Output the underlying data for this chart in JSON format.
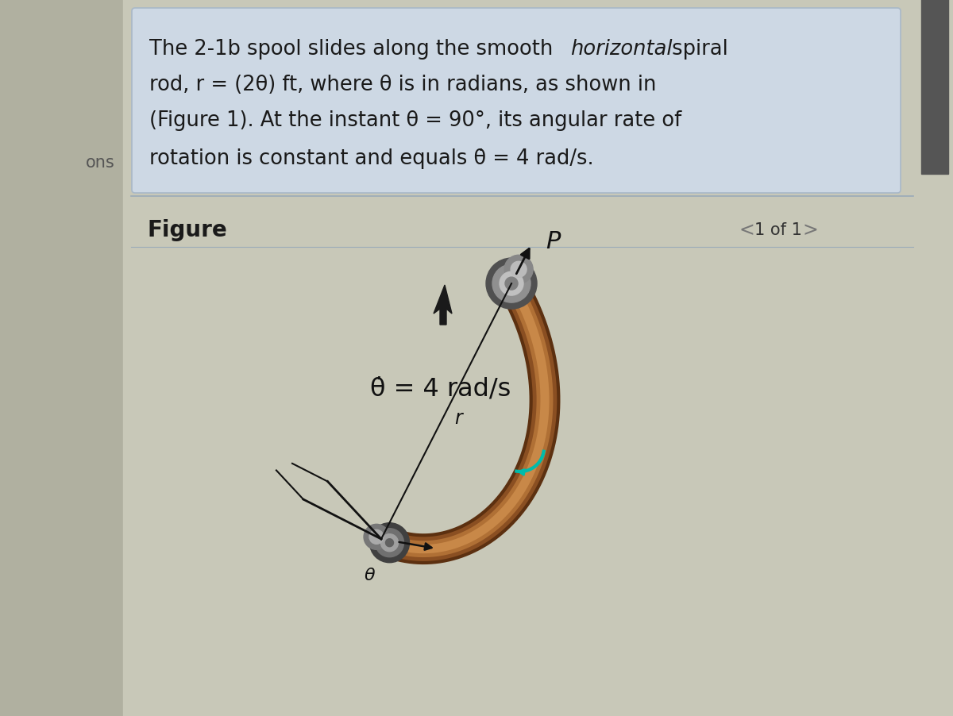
{
  "bg_color": "#c4c4b4",
  "content_bg": "#c8c8b8",
  "text_box_color": "#cdd8e4",
  "text_box_edge": "#a8b8c8",
  "figure_label": "Figure",
  "page_label": "1 of 1",
  "theta_dot_label": "θ̇ = 4 rad/s",
  "theta_label": "θ",
  "r_label": "r",
  "P_label": "P",
  "left_strip_color": "#b0b0a0",
  "scrollbar_color": "#555555",
  "scrollbar_track": "#c8c8b8",
  "rod_dark": "#7a4a20",
  "rod_mid": "#a06030",
  "rod_light": "#c88848",
  "spool_dark": "#606060",
  "spool_mid": "#909090",
  "spool_light": "#b8b8b8",
  "line_color": "#222222",
  "cyan_color": "#00bbaa",
  "text_color": "#1a1a1a"
}
